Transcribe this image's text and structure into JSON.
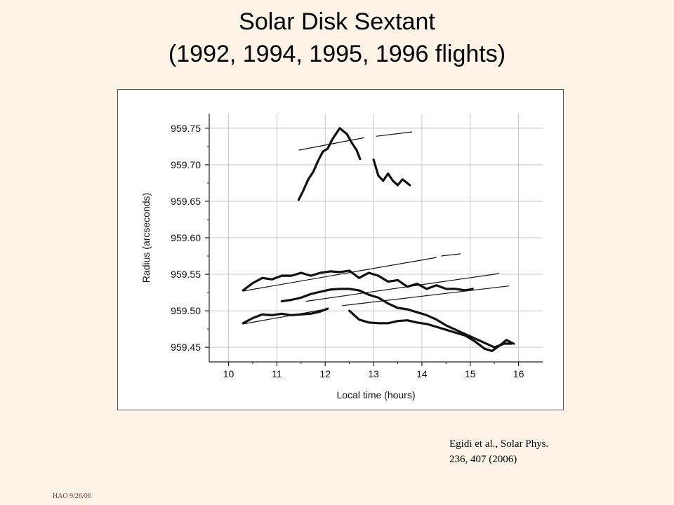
{
  "slide": {
    "title_line1": "Solar Disk Sextant",
    "title_line2": "(1992, 1994, 1995, 1996 flights)",
    "citation_line1": "Egidi et al., Solar Phys.",
    "citation_line2": "236, 407 (2006)",
    "footer": "HAO 9/26/06"
  },
  "colors": {
    "background": "#fdf3e6",
    "data_line": "#111111",
    "grid": "#c8c8c8",
    "footer_text": "#7a3b3b"
  },
  "chart_data": {
    "type": "line",
    "title": "",
    "xlabel": "Local time (hours)",
    "ylabel": "Radius (arcseconds)",
    "xlim": [
      9.6,
      16.5
    ],
    "ylim": [
      959.43,
      959.77
    ],
    "xticks": [
      10,
      11,
      12,
      13,
      14,
      15,
      16
    ],
    "xtick_labels": [
      "10",
      "11",
      "12",
      "13",
      "14",
      "15",
      "16"
    ],
    "yticks": [
      959.45,
      959.5,
      959.55,
      959.6,
      959.65,
      959.7,
      959.75
    ],
    "ytick_labels": [
      "959.45",
      "959.50",
      "959.55",
      "959.60",
      "959.65",
      "959.70",
      "959.75"
    ],
    "grid": true,
    "measured_series": [
      {
        "points": [
          [
            11.45,
            959.652
          ],
          [
            11.55,
            959.665
          ],
          [
            11.65,
            959.68
          ],
          [
            11.75,
            959.69
          ],
          [
            11.85,
            959.705
          ],
          [
            11.95,
            959.718
          ],
          [
            12.05,
            959.722
          ],
          [
            12.15,
            959.735
          ],
          [
            12.3,
            959.75
          ],
          [
            12.45,
            959.742
          ],
          [
            12.55,
            959.73
          ],
          [
            12.65,
            959.72
          ],
          [
            12.72,
            959.708
          ]
        ]
      },
      {
        "points": [
          [
            13.0,
            959.707
          ],
          [
            13.1,
            959.685
          ],
          [
            13.2,
            959.678
          ],
          [
            13.3,
            959.688
          ],
          [
            13.4,
            959.678
          ],
          [
            13.5,
            959.672
          ],
          [
            13.6,
            959.68
          ],
          [
            13.75,
            959.672
          ]
        ]
      },
      {
        "points": [
          [
            10.3,
            959.528
          ],
          [
            10.5,
            959.538
          ],
          [
            10.7,
            959.545
          ],
          [
            10.9,
            959.543
          ],
          [
            11.1,
            959.548
          ],
          [
            11.3,
            959.548
          ],
          [
            11.5,
            959.552
          ],
          [
            11.7,
            959.548
          ],
          [
            11.9,
            959.552
          ],
          [
            12.1,
            959.554
          ],
          [
            12.3,
            959.553
          ],
          [
            12.5,
            959.555
          ],
          [
            12.7,
            959.545
          ],
          [
            12.9,
            959.552
          ],
          [
            13.1,
            959.548
          ],
          [
            13.3,
            959.54
          ],
          [
            13.5,
            959.542
          ],
          [
            13.7,
            959.533
          ],
          [
            13.9,
            959.537
          ],
          [
            14.1,
            959.53
          ],
          [
            14.3,
            959.535
          ],
          [
            14.5,
            959.53
          ],
          [
            14.7,
            959.53
          ],
          [
            14.9,
            959.528
          ],
          [
            15.05,
            959.53
          ]
        ]
      },
      {
        "points": [
          [
            11.1,
            959.513
          ],
          [
            11.3,
            959.515
          ],
          [
            11.5,
            959.518
          ],
          [
            11.7,
            959.523
          ],
          [
            11.9,
            959.526
          ],
          [
            12.1,
            959.529
          ],
          [
            12.3,
            959.53
          ],
          [
            12.5,
            959.53
          ],
          [
            12.7,
            959.528
          ],
          [
            12.9,
            959.522
          ],
          [
            13.1,
            959.518
          ],
          [
            13.3,
            959.51
          ],
          [
            13.5,
            959.504
          ],
          [
            13.7,
            959.502
          ],
          [
            13.9,
            959.498
          ],
          [
            14.1,
            959.494
          ],
          [
            14.3,
            959.488
          ],
          [
            14.5,
            959.48
          ],
          [
            14.7,
            959.474
          ],
          [
            14.9,
            959.468
          ],
          [
            15.1,
            959.462
          ],
          [
            15.3,
            959.456
          ],
          [
            15.5,
            959.45
          ],
          [
            15.7,
            959.455
          ],
          [
            15.85,
            959.455
          ]
        ]
      },
      {
        "points": [
          [
            10.3,
            959.483
          ],
          [
            10.5,
            959.49
          ],
          [
            10.7,
            959.495
          ],
          [
            10.9,
            959.494
          ],
          [
            11.1,
            959.496
          ],
          [
            11.3,
            959.494
          ],
          [
            11.5,
            959.495
          ],
          [
            11.7,
            959.496
          ],
          [
            11.9,
            959.499
          ],
          [
            12.05,
            959.503
          ]
        ]
      },
      {
        "points": [
          [
            12.5,
            959.5
          ],
          [
            12.7,
            959.488
          ],
          [
            12.9,
            959.484
          ],
          [
            13.1,
            959.483
          ],
          [
            13.3,
            959.483
          ],
          [
            13.5,
            959.486
          ],
          [
            13.7,
            959.487
          ],
          [
            13.9,
            959.484
          ],
          [
            14.1,
            959.482
          ],
          [
            14.3,
            959.478
          ],
          [
            14.5,
            959.474
          ],
          [
            14.7,
            959.47
          ],
          [
            14.9,
            959.466
          ],
          [
            15.1,
            959.458
          ],
          [
            15.3,
            959.448
          ],
          [
            15.45,
            959.445
          ],
          [
            15.6,
            959.452
          ],
          [
            15.75,
            959.46
          ],
          [
            15.9,
            959.455
          ]
        ]
      }
    ],
    "model_series": [
      {
        "points": [
          [
            11.45,
            959.72
          ],
          [
            12.8,
            959.737
          ]
        ]
      },
      {
        "points": [
          [
            13.05,
            959.739
          ],
          [
            13.8,
            959.745
          ]
        ]
      },
      {
        "points": [
          [
            10.3,
            959.527
          ],
          [
            14.3,
            959.573
          ]
        ]
      },
      {
        "points": [
          [
            14.4,
            959.575
          ],
          [
            14.8,
            959.578
          ]
        ]
      },
      {
        "points": [
          [
            11.6,
            959.513
          ],
          [
            15.6,
            959.551
          ]
        ]
      },
      {
        "points": [
          [
            12.35,
            959.507
          ],
          [
            15.8,
            959.534
          ]
        ]
      },
      {
        "points": [
          [
            10.3,
            959.482
          ],
          [
            12.0,
            959.502
          ]
        ]
      }
    ]
  }
}
